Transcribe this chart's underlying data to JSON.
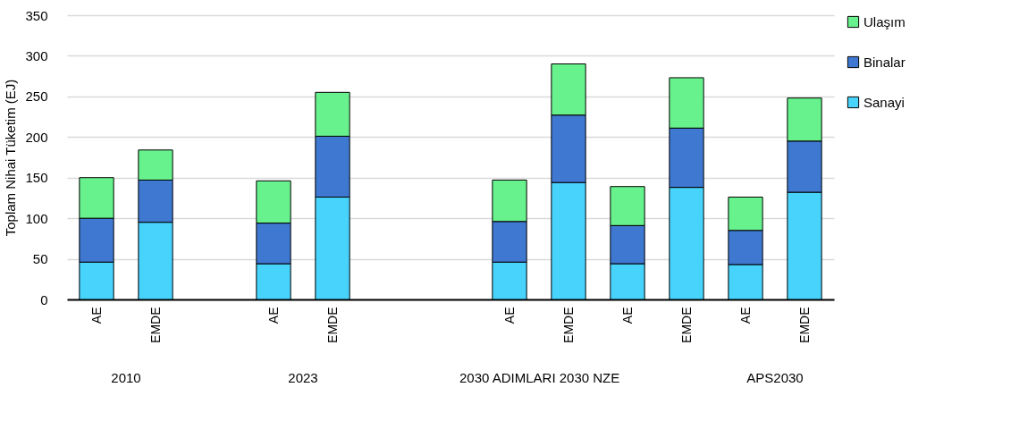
{
  "chart_data": {
    "type": "bar",
    "stacked": true,
    "ylabel": "Toplam Nihai Tüketim (EJ)",
    "categories": [
      "AE",
      "EMDE",
      null,
      "AE",
      "EMDE",
      null,
      null,
      "AE",
      "EMDE",
      "AE",
      "EMDE",
      "AE",
      "EMDE"
    ],
    "series": [
      {
        "name": "Sanayi",
        "color": "#48d3fd",
        "values": [
          46,
          95,
          null,
          44,
          126,
          null,
          null,
          46,
          144,
          44,
          138,
          43,
          132
        ]
      },
      {
        "name": "Binalar",
        "color": "#3f78d1",
        "values": [
          54,
          52,
          null,
          50,
          75,
          null,
          null,
          50,
          83,
          47,
          73,
          42,
          63
        ]
      },
      {
        "name": "Ulaşım",
        "color": "#68f28d",
        "values": [
          50,
          37,
          null,
          52,
          54,
          null,
          null,
          51,
          63,
          48,
          62,
          41,
          53
        ]
      }
    ],
    "ylim": [
      0,
      350
    ],
    "yticks": [
      0,
      50,
      100,
      150,
      200,
      250,
      300,
      350
    ],
    "grid": "y",
    "legend": "right",
    "annotations": [
      "2010",
      "2023",
      "2030 ADIMLARI 2030 NZE",
      "APS2030"
    ]
  }
}
